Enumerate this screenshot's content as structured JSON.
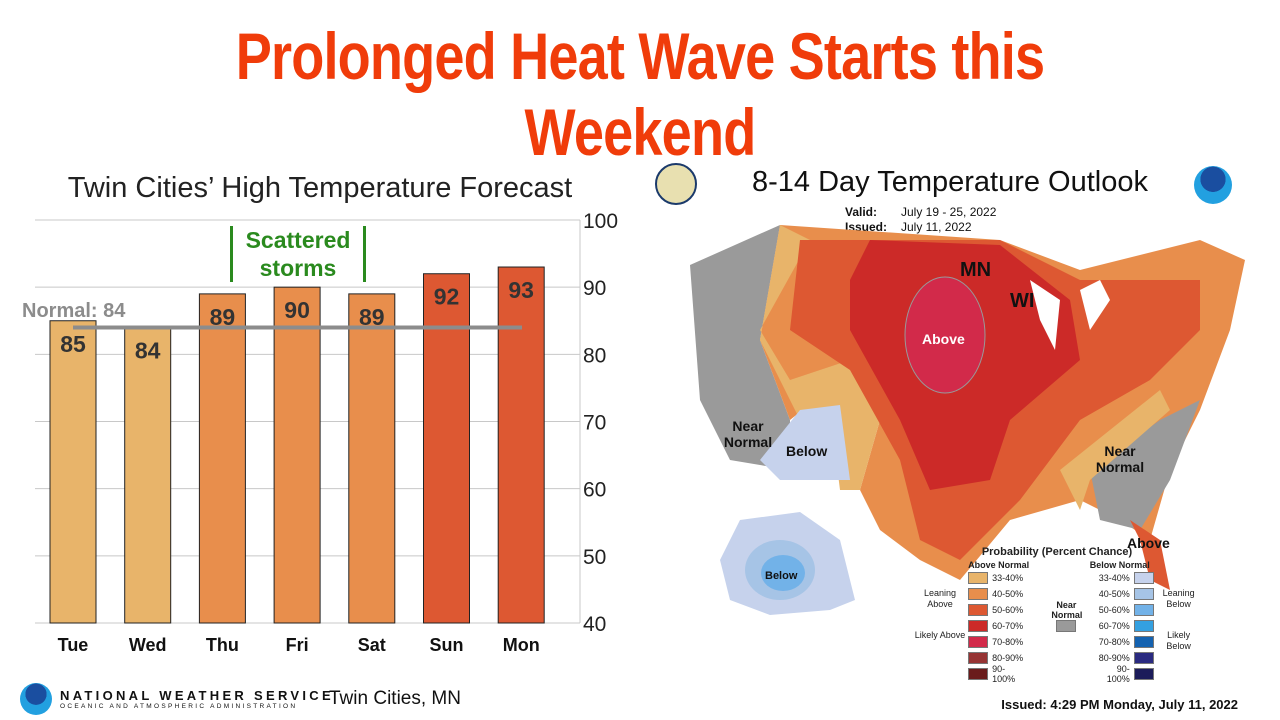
{
  "title": "Prolonged Heat Wave Starts this Weekend",
  "chart_data": {
    "type": "bar",
    "title": "Twin Cities’ High Temperature Forecast",
    "categories": [
      "Tue",
      "Wed",
      "Thu",
      "Fri",
      "Sat",
      "Sun",
      "Mon"
    ],
    "values": [
      85,
      84,
      89,
      90,
      89,
      92,
      93
    ],
    "bar_colors": [
      "#E8B46A",
      "#E8B46A",
      "#E88E4C",
      "#E88E4C",
      "#E88E4C",
      "#DD5832",
      "#DD5832"
    ],
    "ylim": [
      40,
      100
    ],
    "yticks": [
      40,
      50,
      60,
      70,
      80,
      90,
      100
    ],
    "yaxis_side": "right",
    "grid": true,
    "normal": {
      "label": "Normal: 84",
      "value": 84,
      "color": "#8c8c8c"
    },
    "annotation": "Scattered storms",
    "annotation_days": [
      "Thu",
      "Sat"
    ]
  },
  "map": {
    "title": "8-14 Day Temperature Outlook",
    "valid_label": "Valid:",
    "valid": "July 19 - 25, 2022",
    "issued_label": "Issued:",
    "issued": "July 11, 2022",
    "labels": {
      "mn": "MN",
      "wi": "WI",
      "above_center": "Above",
      "near_normal_w": "Near Normal",
      "below": "Below",
      "near_normal_e": "Near Normal",
      "above_fl": "Above",
      "below_ak": "Below"
    },
    "legend": {
      "title": "Probability (Percent Chance)",
      "above_header": "Above Normal",
      "below_header": "Below Normal",
      "near": "Near Normal",
      "leaning_above": "Leaning Above",
      "likely_above": "Likely Above",
      "leaning_below": "Leaning Below",
      "likely_below": "Likely Below",
      "above": [
        {
          "r": "33-40%",
          "c": "#E8B46A"
        },
        {
          "r": "40-50%",
          "c": "#E88E4C"
        },
        {
          "r": "50-60%",
          "c": "#DD5832"
        },
        {
          "r": "60-70%",
          "c": "#CC2A28"
        },
        {
          "r": "70-80%",
          "c": "#D22A4A"
        },
        {
          "r": "80-90%",
          "c": "#963434"
        },
        {
          "r": "90-100%",
          "c": "#6a1c1c"
        }
      ],
      "below": [
        {
          "r": "33-40%",
          "c": "#C6D2EC"
        },
        {
          "r": "40-50%",
          "c": "#A6C4E6"
        },
        {
          "r": "50-60%",
          "c": "#72B2E8"
        },
        {
          "r": "60-70%",
          "c": "#34A0E0"
        },
        {
          "r": "70-80%",
          "c": "#1462B0"
        },
        {
          "r": "80-90%",
          "c": "#2A2A80"
        },
        {
          "r": "90-100%",
          "c": "#1c1c5a"
        }
      ],
      "near_color": "#9a9a9a"
    }
  },
  "footer": {
    "nws": "NATIONAL WEATHER SERVICE",
    "noaa": "OCEANIC AND ATMOSPHERIC ADMINISTRATION",
    "city": "Twin Cities, MN",
    "issued": "Issued: 4:29 PM Monday, July 11, 2022"
  }
}
